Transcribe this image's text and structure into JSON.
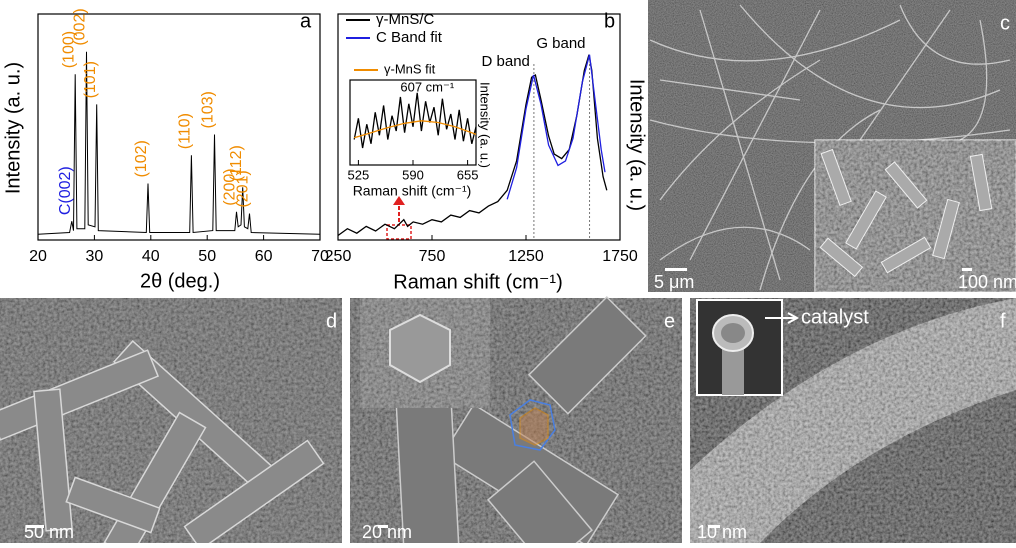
{
  "chart_data": [
    {
      "type": "line",
      "panel_label": "a",
      "x_label": "2θ (deg.)",
      "y_label": "Intensity (a. u.)",
      "color": "#000000",
      "x": [
        20,
        25.6,
        26.0,
        26.3,
        26.6,
        26.9,
        28.3,
        28.6,
        28.9,
        30.1,
        30.4,
        30.7,
        39.2,
        39.5,
        39.8,
        46.9,
        47.2,
        47.5,
        51.0,
        51.3,
        51.6,
        54.9,
        55.2,
        55.5,
        56.0,
        56.3,
        56.6,
        57.2,
        57.5,
        57.8,
        70
      ],
      "values": [
        3,
        4,
        10,
        5,
        88,
        6,
        6,
        100,
        8,
        7,
        72,
        5,
        4,
        30,
        4,
        4,
        45,
        4,
        5,
        56,
        5,
        5,
        15,
        7,
        8,
        28,
        7,
        6,
        14,
        4,
        3
      ],
      "xlim": [
        20,
        70
      ],
      "xticks": [
        20,
        30,
        40,
        50,
        60,
        70
      ],
      "ylim": [
        0,
        120
      ],
      "annotations": [
        {
          "text": "C(002)",
          "x": 26.0,
          "color": "#1f1fe0"
        },
        {
          "text": "(100)",
          "x": 26.6,
          "color": "#f08c00"
        },
        {
          "text": "(002)",
          "x": 28.6,
          "color": "#f08c00"
        },
        {
          "text": "(101)",
          "x": 30.4,
          "color": "#f08c00"
        },
        {
          "text": "(102)",
          "x": 39.5,
          "color": "#f08c00"
        },
        {
          "text": "(110)",
          "x": 47.2,
          "color": "#f08c00"
        },
        {
          "text": "(103)",
          "x": 51.3,
          "color": "#f08c00"
        },
        {
          "text": "(200)",
          "x": 55.2,
          "color": "#f08c00"
        },
        {
          "text": "(112)",
          "x": 56.3,
          "color": "#f08c00"
        },
        {
          "text": "(201)",
          "x": 57.5,
          "color": "#f08c00"
        }
      ]
    },
    {
      "type": "line",
      "panel_label": "b",
      "x_label": "Raman shift (cm⁻¹)",
      "y_label": "Intensity (a. u.)",
      "xlim": [
        250,
        1750
      ],
      "xticks": [
        250,
        750,
        1250,
        1750
      ],
      "ylim": [
        0,
        100
      ],
      "series": [
        {
          "name": "γ-MnS/C",
          "color": "#000000",
          "x": [
            250,
            300,
            350,
            400,
            450,
            500,
            550,
            600,
            620,
            650,
            700,
            750,
            800,
            850,
            900,
            950,
            1000,
            1050,
            1100,
            1150,
            1200,
            1250,
            1280,
            1300,
            1330,
            1370,
            1400,
            1440,
            1480,
            1520,
            1560,
            1585,
            1600,
            1630,
            1660,
            1680
          ],
          "values": [
            2,
            5,
            3,
            6,
            4,
            7,
            5,
            9,
            6,
            8,
            7,
            9,
            8,
            11,
            10,
            13,
            12,
            15,
            17,
            22,
            35,
            60,
            72,
            73,
            62,
            46,
            38,
            36,
            40,
            55,
            75,
            82,
            75,
            45,
            28,
            22
          ]
        },
        {
          "name": "C Band fit",
          "color": "#1f1fe0",
          "x": [
            1150,
            1200,
            1250,
            1290,
            1330,
            1370,
            1420,
            1460,
            1500,
            1550,
            1588,
            1620,
            1650,
            1670
          ],
          "values": [
            18,
            32,
            58,
            73,
            60,
            42,
            33,
            35,
            45,
            70,
            82,
            60,
            40,
            30
          ]
        }
      ],
      "reference_lines": [
        1292,
        1588
      ],
      "annotations": [
        {
          "text": "D band",
          "x": 1292
        },
        {
          "text": "G band",
          "x": 1588
        }
      ]
    },
    {
      "type": "line",
      "x_label": "Raman shift (cm⁻¹)",
      "y_label": "Intensity (a. u.)",
      "xlim": [
        515,
        665
      ],
      "xticks": [
        525,
        590,
        655
      ],
      "ylim": [
        0,
        100
      ],
      "series": [
        {
          "color": "#000000",
          "x": [
            520,
            525,
            530,
            535,
            540,
            545,
            550,
            555,
            560,
            565,
            570,
            575,
            580,
            585,
            590,
            595,
            600,
            605,
            610,
            615,
            620,
            625,
            630,
            635,
            640,
            645,
            650,
            655,
            660,
            665
          ],
          "values": [
            30,
            55,
            20,
            48,
            25,
            62,
            35,
            70,
            30,
            58,
            40,
            80,
            38,
            72,
            45,
            85,
            40,
            75,
            50,
            68,
            35,
            78,
            42,
            60,
            30,
            65,
            28,
            55,
            25,
            45
          ]
        },
        {
          "name": "γ-MnS fit",
          "color": "#f08c00",
          "x": [
            520,
            540,
            560,
            580,
            600,
            620,
            640,
            660,
            665
          ],
          "values": [
            32,
            38,
            44,
            49,
            52,
            50,
            45,
            38,
            36
          ]
        }
      ],
      "annotations": [
        {
          "text": "607 cm⁻¹",
          "x": 607
        }
      ]
    }
  ],
  "images": [
    {
      "panel_label": "c",
      "scale_bar": "5 μm",
      "inset_scale_bar": "100 nm"
    },
    {
      "panel_label": "d",
      "scale_bar": "50 nm"
    },
    {
      "panel_label": "e",
      "scale_bar": "20 nm"
    },
    {
      "panel_label": "f",
      "scale_bar": "10 nm",
      "annotation": "catalyst"
    }
  ]
}
